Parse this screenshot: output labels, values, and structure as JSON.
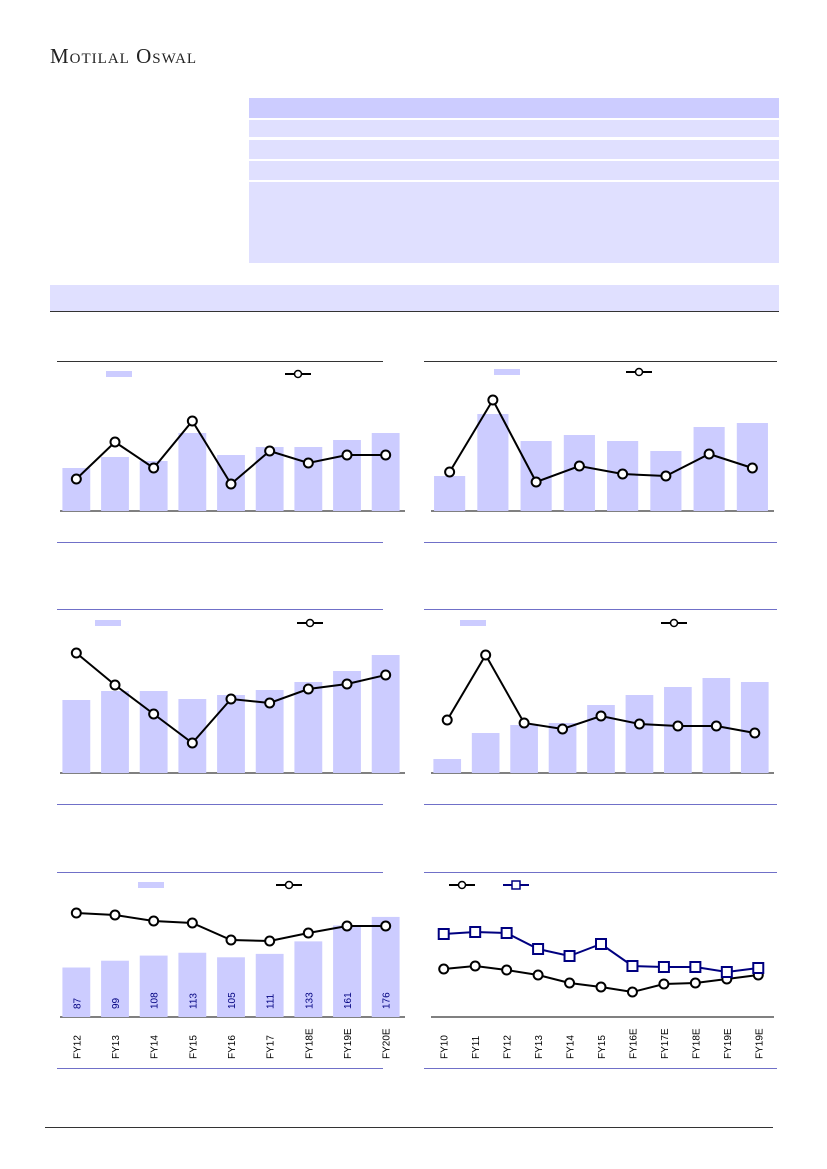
{
  "header": {
    "logo_text": "Motilal Oswal"
  },
  "colors": {
    "bar": "#ccccff",
    "line": "#000000",
    "line2": "#000080",
    "label": "#000080",
    "band": "#e0e0ff",
    "band_head": "#ccccff"
  },
  "chart_data": [
    {
      "type": "bar+line",
      "categories": [
        "",
        "",
        "",
        "",
        "",
        "",
        "",
        "",
        ""
      ],
      "values": [
        43,
        54,
        50,
        78,
        56,
        64,
        64,
        71,
        78
      ],
      "line": [
        32,
        69,
        43,
        90,
        27,
        60,
        48,
        56,
        56
      ],
      "ylim": [
        0,
        150
      ],
      "line_ylim": [
        0,
        150
      ]
    },
    {
      "type": "bar+line",
      "categories": [
        "",
        "",
        "",
        "",
        "",
        "",
        "",
        ""
      ],
      "values": [
        35,
        97,
        70,
        76,
        70,
        60,
        84,
        88
      ],
      "line": [
        39,
        111,
        29,
        45,
        37,
        35,
        57,
        43
      ],
      "ylim": [
        0,
        150
      ],
      "line_ylim": [
        0,
        150
      ]
    },
    {
      "type": "bar+line",
      "categories": [
        "",
        "",
        "",
        "",
        "",
        "",
        "",
        "",
        ""
      ],
      "values": [
        73,
        82,
        82,
        74,
        78,
        83,
        91,
        102,
        118
      ],
      "line": [
        120,
        88,
        59,
        30,
        74,
        70,
        84,
        89,
        98
      ],
      "ylim": [
        0,
        164
      ],
      "line_ylim": [
        0,
        164
      ]
    },
    {
      "type": "bar+line",
      "categories": [
        "",
        "",
        "",
        "",
        "",
        "",
        "",
        "",
        ""
      ],
      "values": [
        14,
        40,
        48,
        50,
        68,
        78,
        86,
        95,
        91
      ],
      "line": [
        53,
        118,
        50,
        44,
        57,
        49,
        47,
        47,
        40
      ],
      "ylim": [
        0,
        164
      ],
      "line_ylim": [
        0,
        164
      ]
    },
    {
      "type": "bar+line",
      "categories": [
        "FY12",
        "FY13",
        "FY14",
        "FY15",
        "FY16",
        "FY17",
        "FY18E",
        "FY19E",
        "FY20E"
      ],
      "values": [
        87,
        99,
        108,
        113,
        105,
        111,
        133,
        161,
        176
      ],
      "value_labels": [
        "87",
        "99",
        "108",
        "113",
        "105",
        "111",
        "133",
        "161",
        "176"
      ],
      "line": [
        104,
        102,
        96,
        94,
        77,
        76,
        84,
        91,
        91
      ],
      "ylim": [
        0,
        255
      ],
      "line_ylim": [
        0,
        145
      ]
    },
    {
      "type": "line",
      "categories": [
        "FY10",
        "FY11",
        "FY12",
        "FY13",
        "FY14",
        "FY15",
        "FY16E",
        "FY17E",
        "FY18E",
        "FY19E",
        "FY19E"
      ],
      "series": [
        {
          "name": "",
          "marker": "circle",
          "values": [
            48,
            51,
            47,
            42,
            34,
            30,
            25,
            33,
            34,
            38,
            42
          ]
        },
        {
          "name": "",
          "marker": "square",
          "values": [
            83,
            85,
            84,
            68,
            61,
            73,
            51,
            50,
            50,
            45,
            49
          ]
        }
      ],
      "ylim": [
        0,
        145
      ]
    }
  ]
}
